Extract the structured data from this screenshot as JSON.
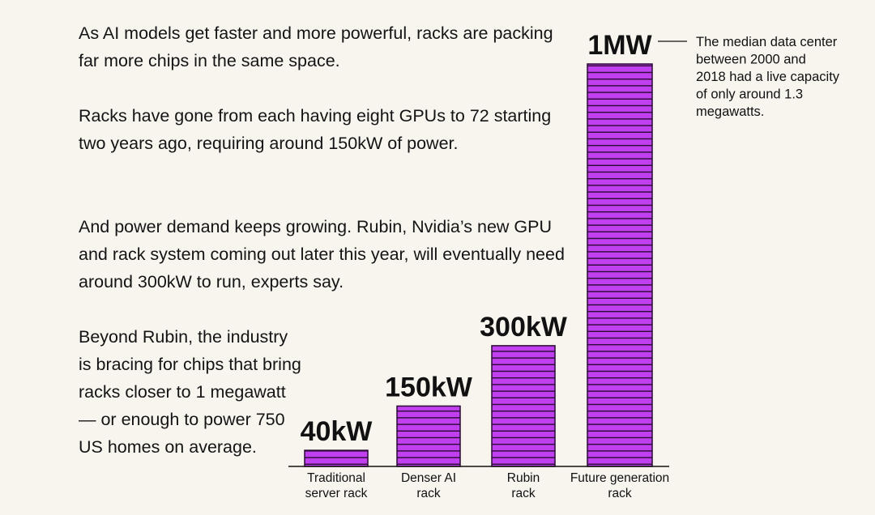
{
  "paragraphs": [
    "As AI models get faster and more powerful, racks are packing far more chips in the same space.",
    "Racks have gone from each having eight GPUs to 72 starting two years ago, requiring around 150kW of power.",
    "And power demand keeps growing. Rubin, Nvidia’s new GPU and rack system coming out later this year, will eventually need around 300kW to run, experts say.",
    "Beyond Rubin, the industry is bracing for chips that bring racks closer to 1 megawatt — or enough to power 750 US homes on average."
  ],
  "chart_data": {
    "type": "bar",
    "categories": [
      [
        "Traditional",
        "server rack"
      ],
      [
        "Denser AI",
        "rack"
      ],
      [
        "Rubin",
        "rack"
      ],
      [
        "Future generation",
        "rack"
      ]
    ],
    "values": [
      40,
      150,
      300,
      1000
    ],
    "unit": "kW",
    "data_labels": [
      "40kW",
      "150kW",
      "300kW",
      "1MW"
    ],
    "annotation": {
      "target": "Future generation rack",
      "lines": [
        "The median data center",
        "between 2000 and",
        "2018 had a live capacity",
        "of only around 1.3",
        "megawatts."
      ]
    },
    "colors": {
      "bar_fill": "#c040f0",
      "bar_stripe": "#2a0a33",
      "axis": "#111111"
    }
  }
}
